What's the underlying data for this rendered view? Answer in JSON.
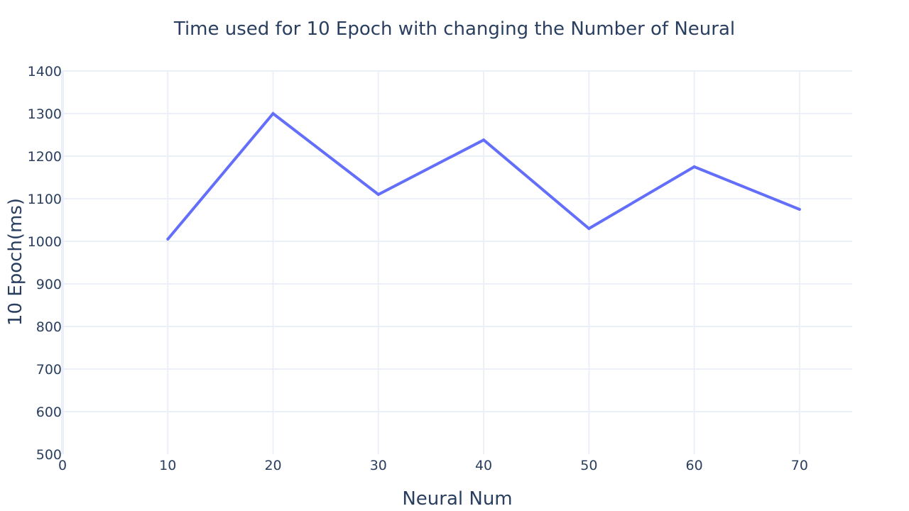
{
  "chart_data": {
    "type": "line",
    "title": "Time used for 10 Epoch with changing the Number of Neural",
    "xlabel": "Neural Num",
    "ylabel": "10 Epoch(ms)",
    "x": [
      10,
      20,
      30,
      40,
      50,
      60,
      70
    ],
    "series": [
      {
        "values": [
          1005,
          1300,
          1110,
          1238,
          1030,
          1175,
          1075
        ]
      }
    ],
    "xlim": [
      0,
      75
    ],
    "ylim": [
      500,
      1400
    ],
    "xticks": [
      0,
      10,
      20,
      30,
      40,
      50,
      60,
      70
    ],
    "yticks": [
      500,
      600,
      700,
      800,
      900,
      1000,
      1100,
      1200,
      1300,
      1400
    ],
    "grid": true,
    "legend": "none",
    "colors": {
      "line": "#636efa",
      "grid": "#ebf0f8",
      "zeroline": "#ebf0f8",
      "text": "#2a3f5f",
      "background": "#ffffff"
    }
  }
}
